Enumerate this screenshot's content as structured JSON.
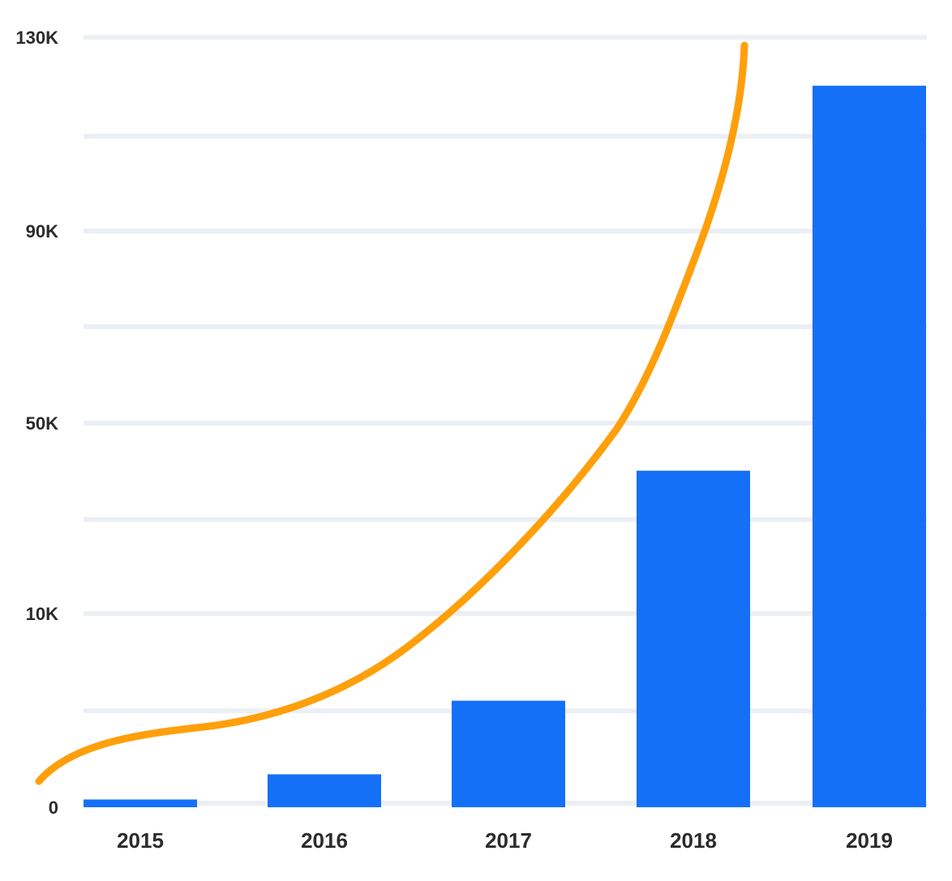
{
  "chart_data": {
    "type": "bar",
    "title": "",
    "xlabel": "",
    "ylabel": "",
    "categories": [
      "2015",
      "2016",
      "2017",
      "2018",
      "2019"
    ],
    "y_tick_labels": [
      "0",
      "10K",
      "50K",
      "90K",
      "130K"
    ],
    "series": [
      {
        "kind": "bar",
        "values": [
          0.4,
          1.7,
          5.5,
          40,
          120
        ]
      }
    ],
    "trend_line": {
      "kind": "line",
      "shape": "smooth",
      "extends_above_axis": true
    },
    "grid": true,
    "legend": "none",
    "colors": {
      "bar": "#1570f8",
      "line": "#ff9f0a",
      "grid": "#eceff4",
      "text": "#2b2b2b"
    }
  }
}
